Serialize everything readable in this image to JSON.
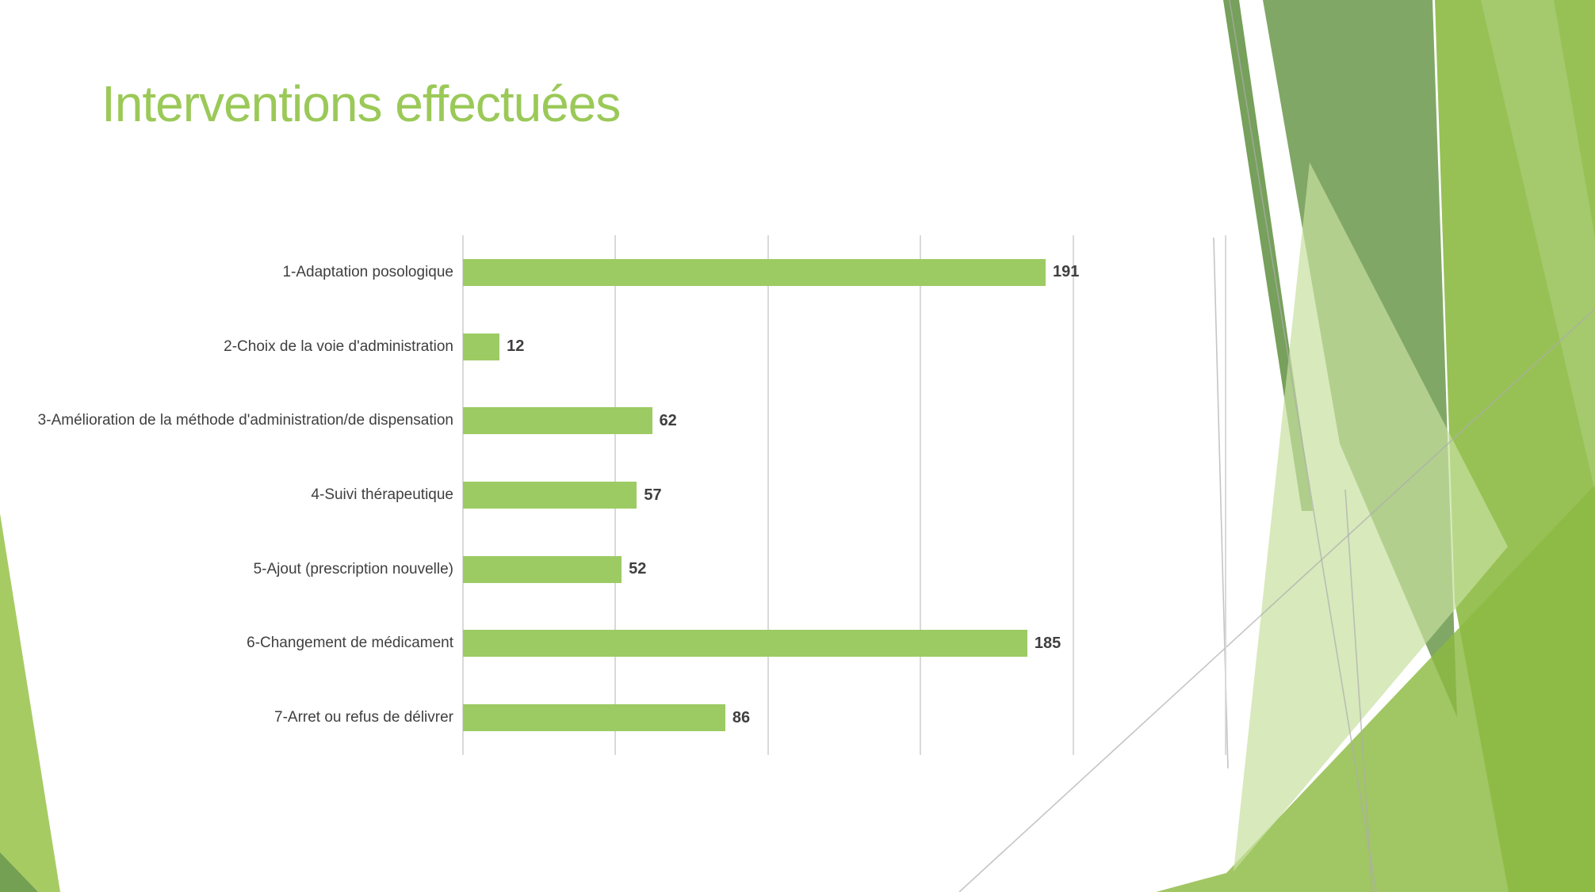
{
  "slide": {
    "title": "Interventions effectuées"
  },
  "chart_data": {
    "type": "bar",
    "orientation": "horizontal",
    "title": "",
    "xlabel": "",
    "ylabel": "",
    "categories": [
      "1-Adaptation posologique",
      "2-Choix de la voie d'administration",
      "3-Amélioration de la méthode d'administration/de dispensation",
      "4-Suivi thérapeutique",
      "5-Ajout (prescription nouvelle)",
      "6-Changement de médicament",
      "7-Arret ou refus de délivrer"
    ],
    "values": [
      191,
      12,
      62,
      57,
      52,
      185,
      86
    ],
    "xlim": [
      0,
      250
    ],
    "gridline_step": 50,
    "grid": true,
    "legend": false,
    "data_labels": true,
    "bar_color": "#9CCB63",
    "gridline_color": "#D9D9D9",
    "label_color": "#3F3F3F"
  },
  "theme": {
    "background": "#FFFFFF",
    "title_color": "#9BC958",
    "deco_sage": "#6F9B52",
    "deco_bright": "#8CBA42",
    "deco_pale": "#C8DFA0",
    "deco_corner": "#A7CB63",
    "hairline": "#ADADAD"
  }
}
